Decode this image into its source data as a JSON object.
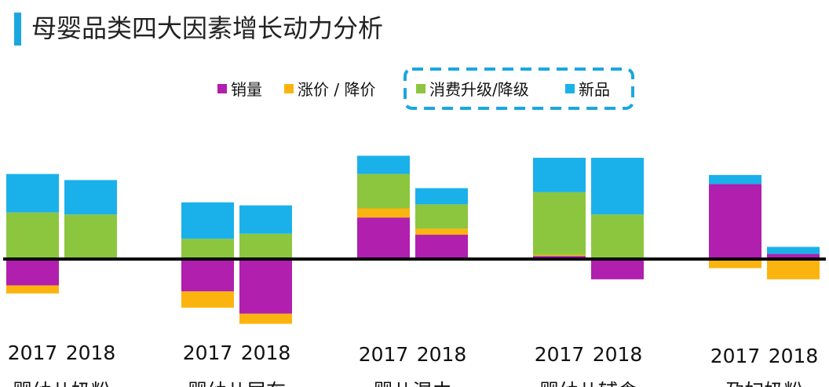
{
  "header": {
    "title": "母婴品类四大因素增长动力分析",
    "accent_color": "#1aa7e0"
  },
  "chart_data": {
    "type": "bar",
    "stacked": true,
    "title": "母婴品类四大因素增长动力分析",
    "legend_position": "top-center",
    "legend_highlight": [
      "消费升级/降级",
      "新品"
    ],
    "grid": false,
    "ylim": [
      -32,
      50
    ],
    "year_labels": [
      "2017",
      "2018"
    ],
    "groups": [
      "婴幼儿奶粉",
      "婴幼儿尿布",
      "婴儿湿巾",
      "婴幼儿辅食",
      "孕妇奶粉"
    ],
    "series": [
      {
        "name": "销量",
        "color": "#b01fae",
        "values": [
          [
            -13,
            0
          ],
          [
            -16,
            -27
          ],
          [
            20.5,
            12
          ],
          [
            1.5,
            -10
          ],
          [
            37,
            2.5
          ]
        ]
      },
      {
        "name": "涨价 / 降价",
        "color": "#fbb40f",
        "values": [
          [
            -4,
            0
          ],
          [
            -8,
            -5
          ],
          [
            4.5,
            3
          ],
          [
            0.5,
            0
          ],
          [
            -4.5,
            -10
          ]
        ]
      },
      {
        "name": "消费升级/降级",
        "color": "#8cc63e",
        "values": [
          [
            23,
            22
          ],
          [
            10,
            12.5
          ],
          [
            17,
            12
          ],
          [
            31,
            22
          ],
          [
            0,
            0
          ]
        ]
      },
      {
        "name": "新品",
        "color": "#1ab1ea",
        "values": [
          [
            19,
            17
          ],
          [
            18,
            14
          ],
          [
            9,
            8
          ],
          [
            17,
            28
          ],
          [
            4.5,
            3.5
          ]
        ]
      }
    ]
  }
}
